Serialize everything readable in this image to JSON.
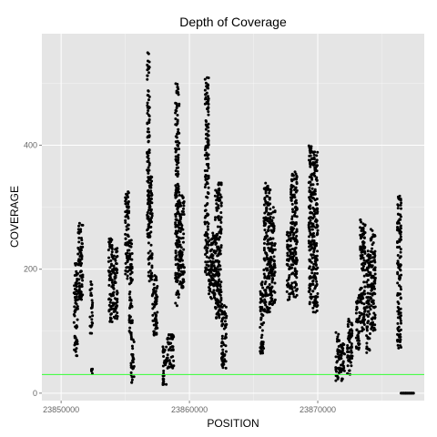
{
  "chart_data": {
    "type": "scatter",
    "title": "Depth of Coverage",
    "xlabel": "POSITION",
    "ylabel": "COVERAGE",
    "xlim": [
      23848500,
      23878300
    ],
    "ylim": [
      -12,
      580
    ],
    "x_ticks": [
      {
        "value": 23850000,
        "label": "23850000"
      },
      {
        "value": 23860000,
        "label": "23860000"
      },
      {
        "value": 23870000,
        "label": "23870000"
      }
    ],
    "y_ticks": [
      {
        "value": 0,
        "label": "0"
      },
      {
        "value": 200,
        "label": "200"
      },
      {
        "value": 400,
        "label": "400"
      }
    ],
    "grid": true,
    "background": "#e5e5e5",
    "grid_color": "#ffffff",
    "point_color": "#000000",
    "reference_line": {
      "y": 30,
      "color": "#33ff33"
    },
    "clusters": [
      {
        "x": [
          23851000,
          23851300
        ],
        "y": [
          60,
          210
        ]
      },
      {
        "x": [
          23851300,
          23851700
        ],
        "y": [
          150,
          275
        ]
      },
      {
        "x": [
          23852250,
          23852450
        ],
        "y": [
          95,
          180
        ]
      },
      {
        "x": [
          23852350,
          23852450
        ],
        "y": [
          25,
          40
        ]
      },
      {
        "x": [
          23853700,
          23854000
        ],
        "y": [
          110,
          250
        ]
      },
      {
        "x": [
          23854000,
          23854400
        ],
        "y": [
          120,
          235
        ]
      },
      {
        "x": [
          23855000,
          23855300
        ],
        "y": [
          180,
          325
        ]
      },
      {
        "x": [
          23855300,
          23855550
        ],
        "y": [
          80,
          250
        ]
      },
      {
        "x": [
          23855450,
          23855700
        ],
        "y": [
          15,
          90
        ]
      },
      {
        "x": [
          23856700,
          23856900
        ],
        "y": [
          240,
          550
        ]
      },
      {
        "x": [
          23856800,
          23857100
        ],
        "y": [
          180,
          350
        ]
      },
      {
        "x": [
          23857100,
          23857500
        ],
        "y": [
          85,
          190
        ]
      },
      {
        "x": [
          23857900,
          23858200
        ],
        "y": [
          5,
          75
        ]
      },
      {
        "x": [
          23858200,
          23858800
        ],
        "y": [
          40,
          95
        ]
      },
      {
        "x": [
          23858900,
          23859200
        ],
        "y": [
          140,
          500
        ]
      },
      {
        "x": [
          23859200,
          23859600
        ],
        "y": [
          170,
          320
        ]
      },
      {
        "x": [
          23861200,
          23861500
        ],
        "y": [
          190,
          510
        ]
      },
      {
        "x": [
          23861500,
          23862000
        ],
        "y": [
          150,
          260
        ]
      },
      {
        "x": [
          23862000,
          23862500
        ],
        "y": [
          120,
          340
        ]
      },
      {
        "x": [
          23862500,
          23862900
        ],
        "y": [
          40,
          145
        ]
      },
      {
        "x": [
          23865500,
          23865800
        ],
        "y": [
          60,
          180
        ]
      },
      {
        "x": [
          23865800,
          23866300
        ],
        "y": [
          130,
          340
        ]
      },
      {
        "x": [
          23866300,
          23866700
        ],
        "y": [
          140,
          300
        ]
      },
      {
        "x": [
          23867600,
          23867900
        ],
        "y": [
          150,
          260
        ]
      },
      {
        "x": [
          23867900,
          23868400
        ],
        "y": [
          155,
          360
        ]
      },
      {
        "x": [
          23869300,
          23869600
        ],
        "y": [
          140,
          400
        ]
      },
      {
        "x": [
          23869600,
          23870000
        ],
        "y": [
          130,
          390
        ]
      },
      {
        "x": [
          23871400,
          23871700
        ],
        "y": [
          20,
          100
        ]
      },
      {
        "x": [
          23871700,
          23872100
        ],
        "y": [
          20,
          80
        ]
      },
      {
        "x": [
          23872300,
          23872700
        ],
        "y": [
          30,
          120
        ]
      },
      {
        "x": [
          23873000,
          23873300
        ],
        "y": [
          70,
          160
        ]
      },
      {
        "x": [
          23873300,
          23873700
        ],
        "y": [
          100,
          280
        ]
      },
      {
        "x": [
          23873800,
          23874100
        ],
        "y": [
          65,
          230
        ]
      },
      {
        "x": [
          23874100,
          23874500
        ],
        "y": [
          100,
          265
        ]
      },
      {
        "x": [
          23876200,
          23876500
        ],
        "y": [
          70,
          320
        ]
      },
      {
        "x": [
          23876500,
          23877500
        ],
        "y": [
          0,
          0
        ]
      }
    ]
  }
}
